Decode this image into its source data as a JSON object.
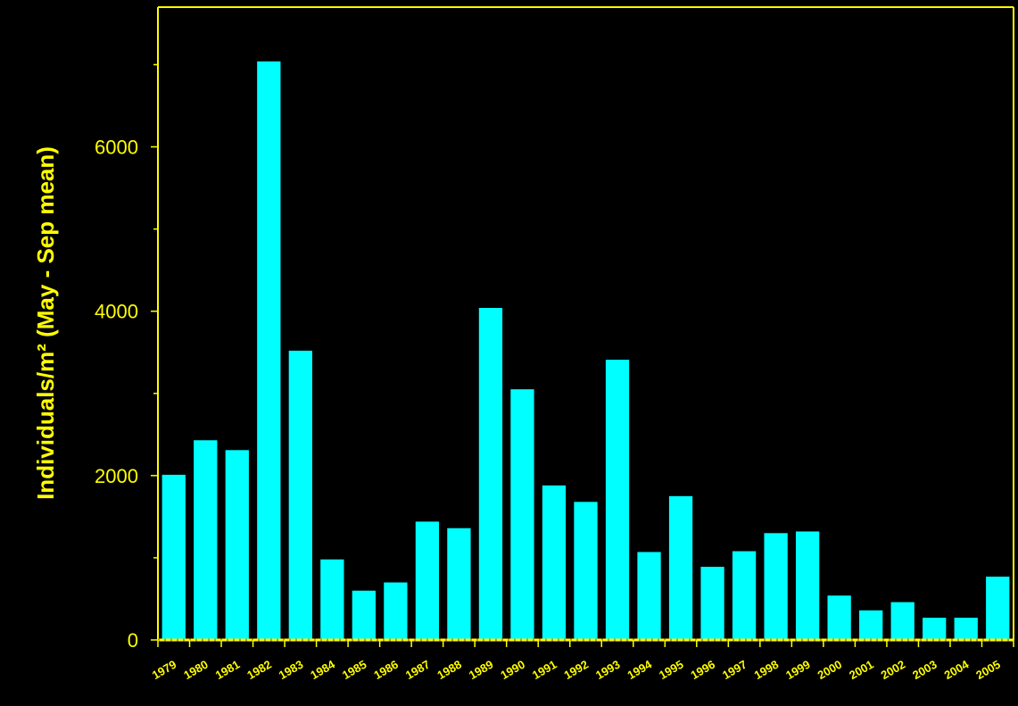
{
  "chart_data": {
    "type": "bar",
    "title": "",
    "xlabel": "",
    "ylabel": "Individuals/m² (May - Sep mean)",
    "ylim": [
      0,
      7700
    ],
    "yticks": [
      0,
      2000,
      4000,
      6000
    ],
    "grid": false,
    "colors": {
      "background": "#000000",
      "axes": "#ffff00",
      "bars": "#00ffff",
      "text": "#ffff00"
    },
    "categories": [
      "1979",
      "1980",
      "1981",
      "1982",
      "1983",
      "1984",
      "1985",
      "1986",
      "1987",
      "1988",
      "1989",
      "1990",
      "1991",
      "1992",
      "1993",
      "1994",
      "1995",
      "1996",
      "1997",
      "1998",
      "1999",
      "2000",
      "2001",
      "2002",
      "2003",
      "2004",
      "2005"
    ],
    "values": [
      2010,
      2430,
      2310,
      7040,
      3520,
      980,
      600,
      700,
      1440,
      1360,
      4040,
      3050,
      1880,
      1680,
      3410,
      1070,
      1750,
      890,
      1080,
      1300,
      1320,
      540,
      360,
      460,
      270,
      270,
      770
    ]
  }
}
